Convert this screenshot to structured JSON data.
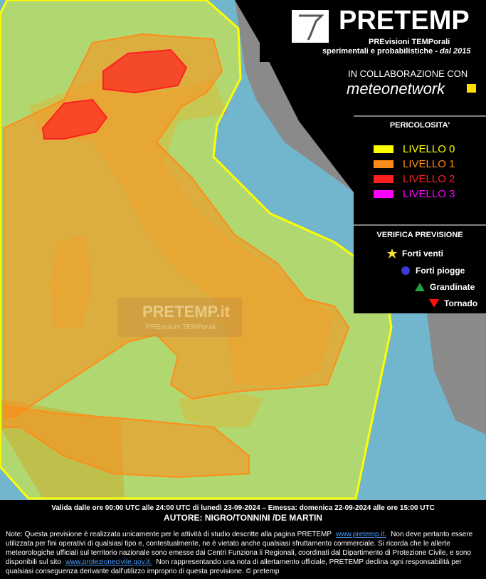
{
  "header": {
    "title": "PRETEMP",
    "subtitle": "PREvisioni TEMPorali",
    "tagline": "sperimentali e probabilistiche - ",
    "since": "dal 2015",
    "collab": "IN COLLABORAZIONE CON",
    "partner": "meteonetwork"
  },
  "legend": {
    "title": "PERICOLOSITA'",
    "levels": [
      {
        "label": "LIVELLO 0",
        "color": "#ffff00"
      },
      {
        "label": "LIVELLO 1",
        "color": "#ff8c1a"
      },
      {
        "label": "LIVELLO 2",
        "color": "#ff2020"
      },
      {
        "label": "LIVELLO 3",
        "color": "#ff00ff"
      }
    ]
  },
  "verification": {
    "title": "VERIFICA PREVISIONE",
    "items": [
      {
        "label": "Forti venti",
        "color": "#ffe033",
        "symbol": "star"
      },
      {
        "label": "Forti piogge",
        "color": "#3a3ad8",
        "symbol": "circle"
      },
      {
        "label": "Grandinate",
        "color": "#22a040",
        "symbol": "triangle"
      },
      {
        "label": "Tornado",
        "color": "#ff1010",
        "symbol": "triangle-down"
      }
    ]
  },
  "watermark": {
    "title": "PRETEMP.it",
    "subtitle": "PREvisioni TEMPorali"
  },
  "footer": {
    "validity": "Valida dalle ore 00:00 UTC alle 24:00 UTC di lunedì 23-09-2024 – Emessa: domenica 22-09-2024 alle ore 15:00 UTC",
    "author": "AUTORE: NIGRO/TONNINI /DE MARTIN",
    "note": [
      "Note: Questa previsione è realizzata unicamente per le attività di studio descritte alla pagina PRETEMP",
      "www.pretemp.it.",
      "Non deve pertanto essere utilizzata per fini operativi di qualsiasi tipo e, contestualmente, ne è vietato anche qualsiasi sfruttamento commerciale. Si ricorda che le allerte meteorologiche ufficiali sul territorio nazionale sono emesse dai Centri Funziona li Regionali, coordinati dal Dipartimento di Protezione Civile, e sono disponibili sul sito",
      "www.protezionecivile.gov.it.",
      "Non rappresentando una nota di allertamento ufficiale, PRETEMP declina ogni responsabilità per qualsiasi conseguenza derivante dall'utilizzo improprio di questa previsione.   © pretemp"
    ]
  }
}
